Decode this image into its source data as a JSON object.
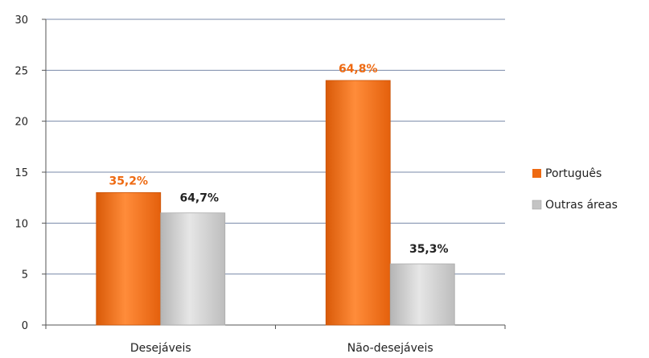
{
  "chart_data": {
    "type": "bar",
    "title": "",
    "xlabel": "",
    "ylabel": "",
    "categories": [
      "Desejáveis",
      "Não-desejáveis"
    ],
    "ylim": [
      0,
      30
    ],
    "yticks": [
      "0",
      "5",
      "10",
      "15",
      "20",
      "25",
      "30"
    ],
    "grid": true,
    "legend_position": "right",
    "series": [
      {
        "name": "Português",
        "values": [
          13,
          24
        ],
        "labels": [
          "35,2%",
          "64,8%"
        ]
      },
      {
        "name": "Outras áreas",
        "values": [
          11,
          6
        ],
        "labels": [
          "64,7%",
          "35,3%"
        ]
      }
    ],
    "colors": {
      "portugues": "#ee6a12",
      "portugues_light": "#ff9a4a",
      "outras": "#c4c4c4",
      "outras_light": "#eeeeee",
      "portugues_label": "#ee6a12",
      "outras_label": "#222222",
      "grid": "#7a8aa8"
    }
  }
}
